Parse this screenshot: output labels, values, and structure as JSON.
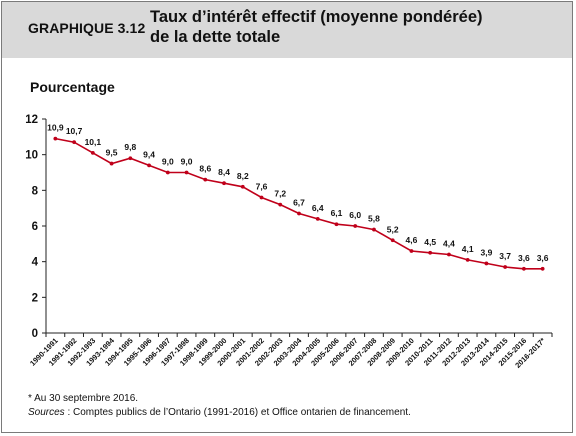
{
  "header": {
    "label": "GRAPHIQUE 3.12",
    "title_line1": "Taux d’intérêt effectif (moyenne pondérée)",
    "title_line2": "de la dette totale"
  },
  "notes": {
    "footnote": "* Au 30 septembre 2016.",
    "sources_label": "Sources",
    "sources_text": " : Comptes publics de l’Ontario (1991-2016) et Office ontarien de financement."
  },
  "colors": {
    "header_background": "#d9d9d9",
    "series_line": "#c0001a",
    "axis": "#222222"
  },
  "chart_data": {
    "type": "line",
    "title": "Taux d’intérêt effectif (moyenne pondérée) de la dette totale",
    "xlabel": "",
    "ylabel": "Pourcentage",
    "ylim": [
      0,
      12
    ],
    "yticks": [
      0,
      2,
      4,
      6,
      8,
      10,
      12
    ],
    "grid": false,
    "legend": "none",
    "categories": [
      "1990-1991",
      "1991-1992",
      "1992-1993",
      "1993-1994",
      "1994-1995",
      "1995-1996",
      "1996-1997",
      "1997-1998",
      "1998-1999",
      "1999-2000",
      "2000-2001",
      "2001-2002",
      "2002-2003",
      "2003-2004",
      "2004-2005",
      "2005-2006",
      "2006-2007",
      "2007-2008",
      "2008-2009",
      "2009-2010",
      "2010-2011",
      "2011-2012",
      "2012-2013",
      "2013-2014",
      "2014-2015",
      "2015-2016",
      "2016-2017*"
    ],
    "values": [
      10.9,
      10.7,
      10.1,
      9.5,
      9.8,
      9.4,
      9.0,
      9.0,
      8.6,
      8.4,
      8.2,
      7.6,
      7.2,
      6.7,
      6.4,
      6.1,
      6.0,
      5.8,
      5.2,
      4.6,
      4.5,
      4.4,
      4.1,
      3.9,
      3.7,
      3.6,
      3.6
    ],
    "value_labels": [
      "10,9",
      "10,7",
      "10,1",
      "9,5",
      "9,8",
      "9,4",
      "9,0",
      "9,0",
      "8,6",
      "8,4",
      "8,2",
      "7,6",
      "7,2",
      "6,7",
      "6,4",
      "6,1",
      "6,0",
      "5,8",
      "5,2",
      "4,6",
      "4,5",
      "4,4",
      "4,1",
      "3,9",
      "3,7",
      "3,6",
      "3,6"
    ]
  }
}
